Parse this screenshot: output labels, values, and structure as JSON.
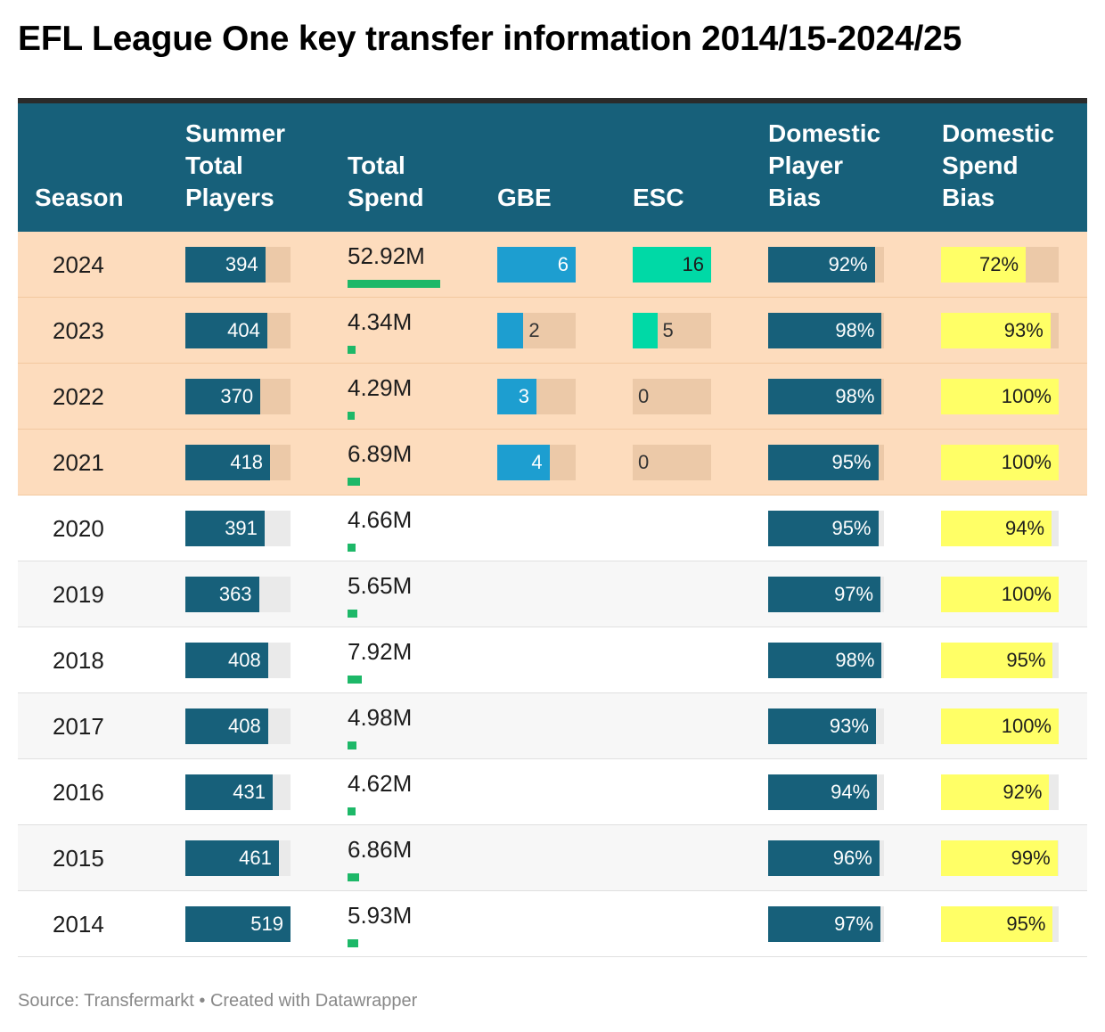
{
  "title": "EFL League One key transfer information 2014/15-2024/25",
  "footer": "Source: Transfermarkt • Created with Datawrapper",
  "headers": {
    "season": "Season",
    "players": [
      "Summer",
      "Total",
      "Players"
    ],
    "spend": [
      "Total",
      "Spend"
    ],
    "gbe": "GBE",
    "esc": "ESC",
    "player_bias": [
      "Domestic",
      "Player",
      "Bias"
    ],
    "spend_bias": [
      "Domestic",
      "Spend",
      "Bias"
    ]
  },
  "colors": {
    "header": "#17607a",
    "players_bar": "#17607a",
    "spend_bar": "#1db868",
    "gbe_bar": "#1d9ed0",
    "esc_bar": "#00d9a6",
    "player_bias_bar": "#17607a",
    "spend_bias_bar": "#ffff66",
    "highlight_row": "#fddcbd"
  },
  "chart_data": {
    "type": "table",
    "title": "EFL League One key transfer information 2014/15-2024/25",
    "columns": [
      "Season",
      "Summer Total Players",
      "Total Spend",
      "GBE",
      "ESC",
      "Domestic Player Bias",
      "Domestic Spend Bias"
    ],
    "scales": {
      "players_max": 519,
      "spend_max": 52.92,
      "gbe_max": 6,
      "esc_max": 16,
      "bias_max": 100
    },
    "rows": [
      {
        "season": "2024",
        "players": 394,
        "spend": 52.92,
        "spend_label": "52.92M",
        "gbe": 6,
        "gbe_label": "6",
        "esc": 16,
        "esc_label": "16",
        "player_bias": 92,
        "player_bias_label": "92%",
        "spend_bias": 72,
        "spend_bias_label": "72%",
        "highlight": true
      },
      {
        "season": "2023",
        "players": 404,
        "spend": 4.34,
        "spend_label": "4.34M",
        "gbe": 2,
        "gbe_label": "2",
        "esc": 5,
        "esc_label": "5",
        "player_bias": 98,
        "player_bias_label": "98%",
        "spend_bias": 93,
        "spend_bias_label": "93%",
        "highlight": true
      },
      {
        "season": "2022",
        "players": 370,
        "spend": 4.29,
        "spend_label": "4.29M",
        "gbe": 3,
        "gbe_label": "3",
        "esc": 0,
        "esc_label": "0",
        "player_bias": 98,
        "player_bias_label": "98%",
        "spend_bias": 100,
        "spend_bias_label": "100%",
        "highlight": true
      },
      {
        "season": "2021",
        "players": 418,
        "spend": 6.89,
        "spend_label": "6.89M",
        "gbe": 4,
        "gbe_label": "4",
        "esc": 0,
        "esc_label": "0",
        "player_bias": 95,
        "player_bias_label": "95%",
        "spend_bias": 100,
        "spend_bias_label": "100%",
        "highlight": true
      },
      {
        "season": "2020",
        "players": 391,
        "spend": 4.66,
        "spend_label": "4.66M",
        "gbe": null,
        "gbe_label": "",
        "esc": null,
        "esc_label": "",
        "player_bias": 95,
        "player_bias_label": "95%",
        "spend_bias": 94,
        "spend_bias_label": "94%",
        "highlight": false
      },
      {
        "season": "2019",
        "players": 363,
        "spend": 5.65,
        "spend_label": "5.65M",
        "gbe": null,
        "gbe_label": "",
        "esc": null,
        "esc_label": "",
        "player_bias": 97,
        "player_bias_label": "97%",
        "spend_bias": 100,
        "spend_bias_label": "100%",
        "highlight": false
      },
      {
        "season": "2018",
        "players": 408,
        "spend": 7.92,
        "spend_label": "7.92M",
        "gbe": null,
        "gbe_label": "",
        "esc": null,
        "esc_label": "",
        "player_bias": 98,
        "player_bias_label": "98%",
        "spend_bias": 95,
        "spend_bias_label": "95%",
        "highlight": false
      },
      {
        "season": "2017",
        "players": 408,
        "spend": 4.98,
        "spend_label": "4.98M",
        "gbe": null,
        "gbe_label": "",
        "esc": null,
        "esc_label": "",
        "player_bias": 93,
        "player_bias_label": "93%",
        "spend_bias": 100,
        "spend_bias_label": "100%",
        "highlight": false
      },
      {
        "season": "2016",
        "players": 431,
        "spend": 4.62,
        "spend_label": "4.62M",
        "gbe": null,
        "gbe_label": "",
        "esc": null,
        "esc_label": "",
        "player_bias": 94,
        "player_bias_label": "94%",
        "spend_bias": 92,
        "spend_bias_label": "92%",
        "highlight": false
      },
      {
        "season": "2015",
        "players": 461,
        "spend": 6.86,
        "spend_label": "6.86M",
        "gbe": null,
        "gbe_label": "",
        "esc": null,
        "esc_label": "",
        "player_bias": 96,
        "player_bias_label": "96%",
        "spend_bias": 99,
        "spend_bias_label": "99%",
        "highlight": false
      },
      {
        "season": "2014",
        "players": 519,
        "spend": 5.93,
        "spend_label": "5.93M",
        "gbe": null,
        "gbe_label": "",
        "esc": null,
        "esc_label": "",
        "player_bias": 97,
        "player_bias_label": "97%",
        "spend_bias": 95,
        "spend_bias_label": "95%",
        "highlight": false
      }
    ]
  }
}
